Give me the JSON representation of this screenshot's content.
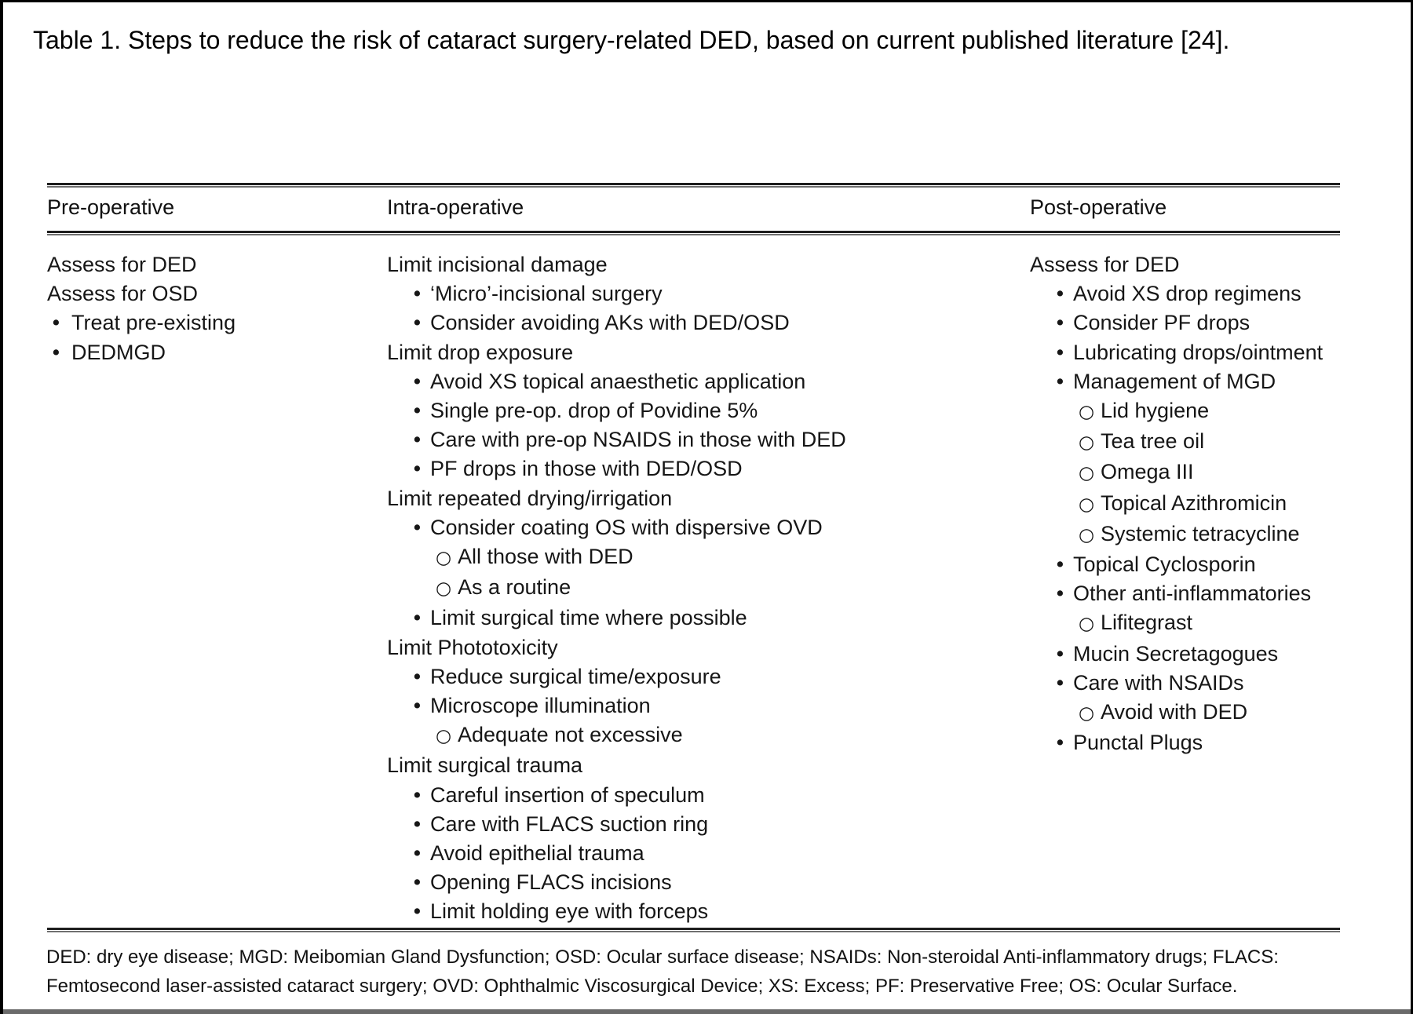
{
  "title": "Table 1. Steps to reduce the risk of cataract surgery-related DED, based on current published literature [24].",
  "markers": {
    "filled": "•",
    "open": "○"
  },
  "colors": {
    "text": "#1a1a1a",
    "rule_dark": "#1e1e1e",
    "rule_light": "#6f6f6f",
    "frame": "#000000",
    "bottom_bar": "#6b6b6b",
    "background": "#ffffff"
  },
  "table": {
    "columns": [
      {
        "header": "Pre-operative",
        "rows": [
          {
            "text": "Assess for DED",
            "level": 0
          },
          {
            "text": "Assess for OSD",
            "level": 0
          },
          {
            "text": "Treat pre-existing",
            "level": 1
          },
          {
            "text": "DEDMGD",
            "level": 1
          }
        ]
      },
      {
        "header": "Intra-operative",
        "rows": [
          {
            "text": "Limit incisional damage",
            "level": 0
          },
          {
            "text": "‘Micro’-incisional surgery",
            "level": 1
          },
          {
            "text": "Consider avoiding AKs with DED/OSD",
            "level": 1
          },
          {
            "text": "Limit drop exposure",
            "level": 0
          },
          {
            "text": "Avoid XS topical anaesthetic application",
            "level": 1
          },
          {
            "text": "Single pre-op. drop of Povidine 5%",
            "level": 1
          },
          {
            "text": "Care with pre-op NSAIDS in those with DED",
            "level": 1
          },
          {
            "text": "PF drops in those with DED/OSD",
            "level": 1
          },
          {
            "text": "Limit repeated drying/irrigation",
            "level": 0
          },
          {
            "text": "Consider coating OS with dispersive OVD",
            "level": 1
          },
          {
            "text": "All those with DED",
            "level": 2
          },
          {
            "text": "As a routine",
            "level": 2
          },
          {
            "text": "Limit surgical time where possible",
            "level": 1
          },
          {
            "text": "Limit Phototoxicity",
            "level": 0
          },
          {
            "text": "Reduce surgical time/exposure",
            "level": 1
          },
          {
            "text": "Microscope illumination",
            "level": 1
          },
          {
            "text": "Adequate not excessive",
            "level": 2
          },
          {
            "text": "Limit surgical trauma",
            "level": 0
          },
          {
            "text": "Careful insertion of speculum",
            "level": 1
          },
          {
            "text": "Care with FLACS suction ring",
            "level": 1
          },
          {
            "text": "Avoid epithelial trauma",
            "level": 1
          },
          {
            "text": "Opening FLACS incisions",
            "level": 1
          },
          {
            "text": "Limit holding eye with forceps",
            "level": 1
          }
        ]
      },
      {
        "header": "Post-operative",
        "rows": [
          {
            "text": "Assess for DED",
            "level": 0
          },
          {
            "text": "Avoid XS drop regimens",
            "level": 1
          },
          {
            "text": "Consider PF drops",
            "level": 1
          },
          {
            "text": "Lubricating drops/ointment",
            "level": 1
          },
          {
            "text": "Management of MGD",
            "level": 1
          },
          {
            "text": "Lid hygiene",
            "level": 2
          },
          {
            "text": "Tea tree oil",
            "level": 2
          },
          {
            "text": "Omega III",
            "level": 2
          },
          {
            "text": "Topical Azithromicin",
            "level": 2
          },
          {
            "text": "Systemic tetracycline",
            "level": 2
          },
          {
            "text": "Topical Cyclosporin",
            "level": 1
          },
          {
            "text": "Other anti-inflammatories",
            "level": 1
          },
          {
            "text": "Lifitegrast",
            "level": 2
          },
          {
            "text": "Mucin Secretagogues",
            "level": 1
          },
          {
            "text": "Care with NSAIDs",
            "level": 1
          },
          {
            "text": "Avoid with DED",
            "level": 2
          },
          {
            "text": "Punctal Plugs",
            "level": 1
          }
        ]
      }
    ]
  },
  "footnote": {
    "lines": [
      "DED: dry eye disease; MGD: Meibomian Gland Dysfunction; OSD: Ocular surface disease; NSAIDs: Non-steroidal Anti-inflammatory drugs; FLACS:",
      "Femtosecond laser-assisted cataract surgery; OVD: Ophthalmic Viscosurgical Device; XS: Excess; PF: Preservative Free; OS: Ocular Surface."
    ]
  }
}
